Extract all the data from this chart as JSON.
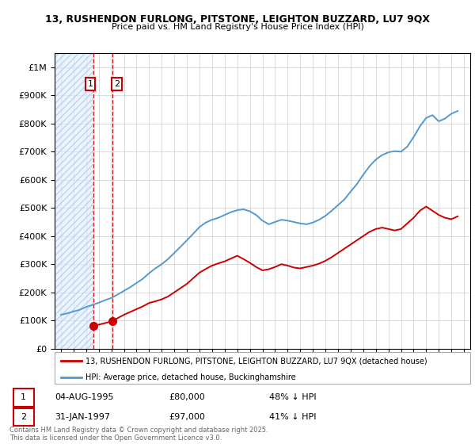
{
  "title_line1": "13, RUSHENDON FURLONG, PITSTONE, LEIGHTON BUZZARD, LU7 9QX",
  "title_line2": "Price paid vs. HM Land Registry's House Price Index (HPI)",
  "legend_label_red": "13, RUSHENDON FURLONG, PITSTONE, LEIGHTON BUZZARD, LU7 9QX (detached house)",
  "legend_label_blue": "HPI: Average price, detached house, Buckinghamshire",
  "purchase1_date": "04-AUG-1995",
  "purchase1_price": 80000,
  "purchase1_pct": "48% ↓ HPI",
  "purchase2_date": "31-JAN-1997",
  "purchase2_price": 97000,
  "purchase2_pct": "41% ↓ HPI",
  "footer": "Contains HM Land Registry data © Crown copyright and database right 2025.\nThis data is licensed under the Open Government Licence v3.0.",
  "red_color": "#cc0000",
  "blue_color": "#5599cc",
  "hatch_bg_color": "#ddeeff",
  "grid_color": "#cccccc",
  "ylim": [
    0,
    1050000
  ],
  "xlim_start": 1992.5,
  "xlim_end": 2025.5,
  "purchase1_x": 1995.58,
  "purchase2_x": 1997.08,
  "red_series_x": [
    1995.58,
    1997.08,
    1997.5,
    1998,
    1998.5,
    1999,
    1999.5,
    2000,
    2000.5,
    2001,
    2001.5,
    2002,
    2002.5,
    2003,
    2003.5,
    2004,
    2004.5,
    2005,
    2005.5,
    2006,
    2006.5,
    2007,
    2007.5,
    2008,
    2008.5,
    2009,
    2009.5,
    2010,
    2010.5,
    2011,
    2011.5,
    2012,
    2012.5,
    2013,
    2013.5,
    2014,
    2014.5,
    2015,
    2015.5,
    2016,
    2016.5,
    2017,
    2017.5,
    2018,
    2018.5,
    2019,
    2019.5,
    2020,
    2020.5,
    2021,
    2021.5,
    2022,
    2022.5,
    2023,
    2023.5,
    2024,
    2024.5
  ],
  "red_series_y": [
    80000,
    97000,
    108000,
    120000,
    130000,
    140000,
    150000,
    162000,
    168000,
    175000,
    185000,
    200000,
    215000,
    230000,
    250000,
    270000,
    283000,
    295000,
    303000,
    310000,
    320000,
    330000,
    318000,
    305000,
    290000,
    278000,
    282000,
    290000,
    300000,
    295000,
    288000,
    285000,
    290000,
    295000,
    302000,
    312000,
    325000,
    340000,
    355000,
    370000,
    385000,
    400000,
    415000,
    425000,
    430000,
    425000,
    420000,
    425000,
    445000,
    465000,
    490000,
    505000,
    490000,
    475000,
    465000,
    460000,
    470000
  ],
  "blue_series_x": [
    1993,
    1993.5,
    1994,
    1994.5,
    1995,
    1995.5,
    1996,
    1996.5,
    1997,
    1997.5,
    1998,
    1998.5,
    1999,
    1999.5,
    2000,
    2000.5,
    2001,
    2001.5,
    2002,
    2002.5,
    2003,
    2003.5,
    2004,
    2004.5,
    2005,
    2005.5,
    2006,
    2006.5,
    2007,
    2007.5,
    2008,
    2008.5,
    2009,
    2009.5,
    2010,
    2010.5,
    2011,
    2011.5,
    2012,
    2012.5,
    2013,
    2013.5,
    2014,
    2014.5,
    2015,
    2015.5,
    2016,
    2016.5,
    2017,
    2017.5,
    2018,
    2018.5,
    2019,
    2019.5,
    2020,
    2020.5,
    2021,
    2021.5,
    2022,
    2022.5,
    2023,
    2023.5,
    2024,
    2024.5
  ],
  "blue_series_y": [
    120000,
    125000,
    132000,
    138000,
    148000,
    155000,
    163000,
    172000,
    180000,
    192000,
    205000,
    218000,
    233000,
    248000,
    268000,
    285000,
    300000,
    318000,
    340000,
    362000,
    385000,
    408000,
    432000,
    448000,
    458000,
    465000,
    475000,
    485000,
    492000,
    495000,
    488000,
    475000,
    455000,
    442000,
    450000,
    458000,
    455000,
    450000,
    445000,
    442000,
    448000,
    458000,
    472000,
    490000,
    510000,
    530000,
    558000,
    585000,
    618000,
    648000,
    672000,
    688000,
    698000,
    702000,
    700000,
    718000,
    752000,
    790000,
    820000,
    830000,
    808000,
    818000,
    835000,
    845000
  ]
}
